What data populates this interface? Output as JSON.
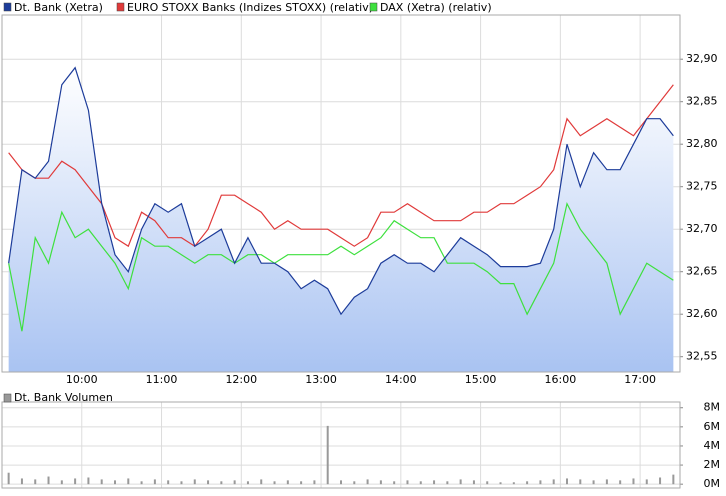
{
  "chart_data": [
    {
      "type": "line",
      "x": [
        545,
        555,
        565,
        575,
        585,
        595,
        605,
        615,
        625,
        635,
        645,
        655,
        665,
        675,
        685,
        695,
        705,
        715,
        725,
        735,
        745,
        755,
        765,
        775,
        785,
        795,
        805,
        815,
        825,
        835,
        845,
        855,
        865,
        875,
        885,
        895,
        905,
        915,
        925,
        935,
        945,
        955,
        965,
        975,
        985,
        995,
        1005,
        1015,
        1025,
        1035,
        1045
      ],
      "xlim": [
        540,
        1050
      ],
      "xticks": [
        {
          "value": 600,
          "label": "10:00"
        },
        {
          "value": 660,
          "label": "11:00"
        },
        {
          "value": 720,
          "label": "12:00"
        },
        {
          "value": 780,
          "label": "13:00"
        },
        {
          "value": 840,
          "label": "14:00"
        },
        {
          "value": 900,
          "label": "15:00"
        },
        {
          "value": 960,
          "label": "16:00"
        },
        {
          "value": 1020,
          "label": "17:00"
        }
      ],
      "ylim": [
        32.532,
        32.952
      ],
      "yticks": [
        {
          "value": 32.55,
          "label": "32,55"
        },
        {
          "value": 32.6,
          "label": "32,60"
        },
        {
          "value": 32.65,
          "label": "32,65"
        },
        {
          "value": 32.7,
          "label": "32,70"
        },
        {
          "value": 32.75,
          "label": "32,75"
        },
        {
          "value": 32.8,
          "label": "32,80"
        },
        {
          "value": 32.85,
          "label": "32,85"
        },
        {
          "value": 32.9,
          "label": "32,90"
        }
      ],
      "grid": true,
      "area_series": 0,
      "series": [
        {
          "name": "Dt. Bank (Xetra)",
          "color": "#1d3c9a",
          "values": [
            32.66,
            32.77,
            32.76,
            32.78,
            32.87,
            32.89,
            32.84,
            32.73,
            32.67,
            32.65,
            32.7,
            32.73,
            32.72,
            32.73,
            32.68,
            32.69,
            32.7,
            32.66,
            32.69,
            32.66,
            32.66,
            32.65,
            32.63,
            32.64,
            32.63,
            32.6,
            32.62,
            32.63,
            32.66,
            32.67,
            32.66,
            32.66,
            32.65,
            32.67,
            32.69,
            32.68,
            32.67,
            32.656,
            32.656,
            32.656,
            32.66,
            32.7,
            32.8,
            32.75,
            32.79,
            32.77,
            32.77,
            32.8,
            32.83,
            32.83,
            32.81
          ]
        },
        {
          "name": "EURO STOXX Banks (Indizes STOXX) (relativ)",
          "color": "#e03a3a",
          "values": [
            32.79,
            32.77,
            32.76,
            32.76,
            32.78,
            32.77,
            32.75,
            32.73,
            32.69,
            32.68,
            32.72,
            32.71,
            32.69,
            32.69,
            32.68,
            32.7,
            32.74,
            32.74,
            32.73,
            32.72,
            32.7,
            32.71,
            32.7,
            32.7,
            32.7,
            32.69,
            32.68,
            32.69,
            32.72,
            32.72,
            32.73,
            32.72,
            32.71,
            32.71,
            32.71,
            32.72,
            32.72,
            32.73,
            32.73,
            32.74,
            32.75,
            32.77,
            32.83,
            32.81,
            32.82,
            32.83,
            32.82,
            32.81,
            32.83,
            32.85,
            32.87
          ]
        },
        {
          "name": "DAX (Xetra) (relativ)",
          "color": "#3ee03e",
          "values": [
            32.66,
            32.58,
            32.69,
            32.66,
            32.72,
            32.69,
            32.7,
            32.68,
            32.66,
            32.63,
            32.69,
            32.68,
            32.68,
            32.67,
            32.66,
            32.67,
            32.67,
            32.66,
            32.67,
            32.67,
            32.66,
            32.67,
            32.67,
            32.67,
            32.67,
            32.68,
            32.67,
            32.68,
            32.69,
            32.71,
            32.7,
            32.69,
            32.69,
            32.66,
            32.66,
            32.66,
            32.65,
            32.636,
            32.636,
            32.6,
            32.63,
            32.66,
            32.73,
            32.7,
            32.68,
            32.66,
            32.6,
            32.63,
            32.66,
            32.65,
            32.64
          ]
        }
      ]
    },
    {
      "type": "bar",
      "x": [
        545,
        555,
        565,
        575,
        585,
        595,
        605,
        615,
        625,
        635,
        645,
        655,
        665,
        675,
        685,
        695,
        705,
        715,
        725,
        735,
        745,
        755,
        765,
        775,
        785,
        795,
        805,
        815,
        825,
        835,
        845,
        855,
        865,
        875,
        885,
        895,
        905,
        915,
        925,
        935,
        945,
        955,
        965,
        975,
        985,
        995,
        1005,
        1015,
        1025,
        1035,
        1045
      ],
      "xlim": [
        540,
        1050
      ],
      "ylim": [
        -0.4,
        8.6
      ],
      "yticks": [
        {
          "value": 0,
          "label": "0M"
        },
        {
          "value": 2,
          "label": "2M"
        },
        {
          "value": 4,
          "label": "4M"
        },
        {
          "value": 6,
          "label": "6M"
        },
        {
          "value": 8,
          "label": "8M"
        }
      ],
      "grid": true,
      "series": [
        {
          "name": "Dt. Bank Volumen",
          "color": "#999999",
          "values": [
            1.2,
            0.6,
            0.5,
            0.8,
            0.4,
            0.6,
            0.7,
            0.5,
            0.4,
            0.6,
            0.3,
            0.5,
            0.4,
            0.3,
            0.5,
            0.4,
            0.3,
            0.4,
            0.3,
            0.5,
            0.3,
            0.4,
            0.3,
            0.4,
            6.1,
            0.4,
            0.3,
            0.5,
            0.4,
            0.3,
            0.4,
            0.3,
            0.4,
            0.3,
            0.5,
            0.4,
            0.3,
            0.2,
            0.2,
            0.3,
            0.4,
            0.5,
            0.6,
            0.5,
            0.4,
            0.5,
            0.4,
            0.6,
            0.5,
            0.7,
            1.0
          ]
        }
      ]
    }
  ]
}
